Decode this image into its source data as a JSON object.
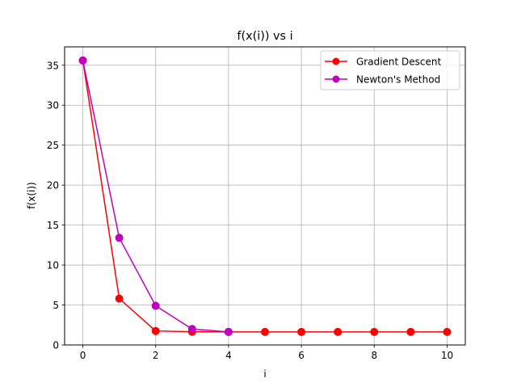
{
  "chart_data": {
    "type": "line",
    "title": "f(x(i)) vs i",
    "xlabel": "i",
    "ylabel": "f(x(i))",
    "xlim": [
      -0.5,
      10.5
    ],
    "ylim": [
      0,
      37.3
    ],
    "xticks": [
      0,
      2,
      4,
      6,
      8,
      10
    ],
    "yticks": [
      0,
      5,
      10,
      15,
      20,
      25,
      30,
      35
    ],
    "grid": true,
    "legend_position": "top-right",
    "series": [
      {
        "name": "Gradient Descent",
        "color": "#ff0000",
        "x": [
          0,
          1,
          2,
          3,
          4,
          5,
          6,
          7,
          8,
          9,
          10
        ],
        "y": [
          35.6,
          5.8,
          1.75,
          1.65,
          1.63,
          1.63,
          1.63,
          1.63,
          1.63,
          1.63,
          1.63
        ]
      },
      {
        "name": "Newton's Method",
        "color": "#bf00bf",
        "x": [
          0,
          1,
          2,
          3,
          4
        ],
        "y": [
          35.6,
          13.4,
          4.9,
          2.0,
          1.63
        ]
      }
    ]
  }
}
